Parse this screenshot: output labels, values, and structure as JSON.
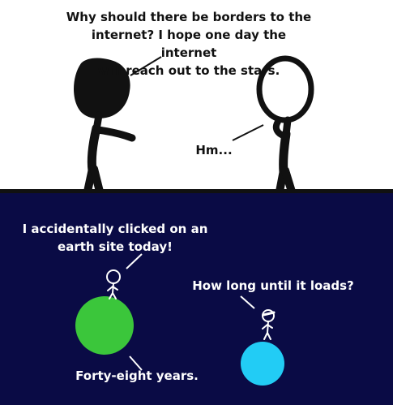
{
  "panel_1": {
    "speech_woman": "Why should there be borders to the\ninternet? I hope one day the internet\nwill reach out to the stars.",
    "speech_man": "Hm..."
  },
  "panel_2": {
    "speech_upper_left": "I accidentally clicked on an\nearth site today!",
    "speech_upper_right": "How long until it loads?",
    "speech_bottom": "Forty-eight years."
  },
  "colors": {
    "space_background": "#0a0b45",
    "green_planet": "#3bc63b",
    "blue_planet": "#22ccf5",
    "ink": "#111111"
  }
}
